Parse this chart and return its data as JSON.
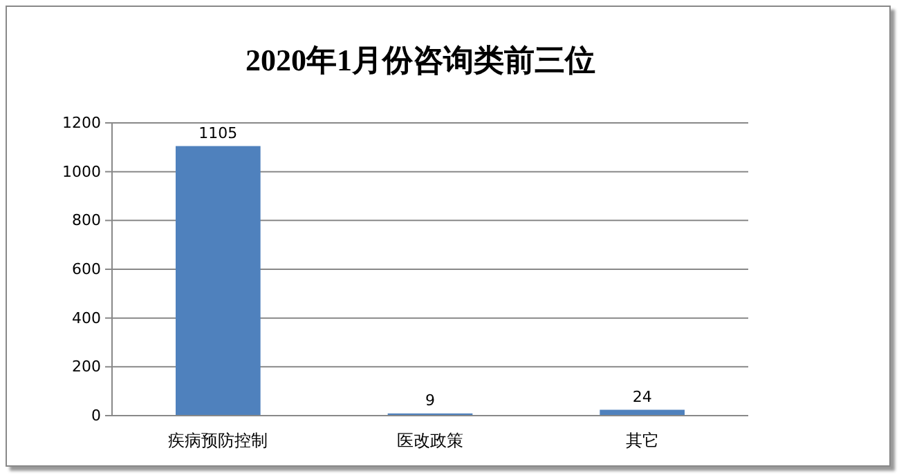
{
  "chart_data": {
    "type": "bar",
    "title": "2020年1月份咨询类前三位",
    "categories": [
      "疾病预防控制",
      "医改政策",
      "其它"
    ],
    "values": [
      1105,
      9,
      24
    ],
    "color": "#4f81bd",
    "ylim": [
      0,
      1200
    ],
    "yticks": [
      0,
      200,
      400,
      600,
      800,
      1000,
      1200
    ],
    "grid": "y",
    "data_labels": true
  }
}
